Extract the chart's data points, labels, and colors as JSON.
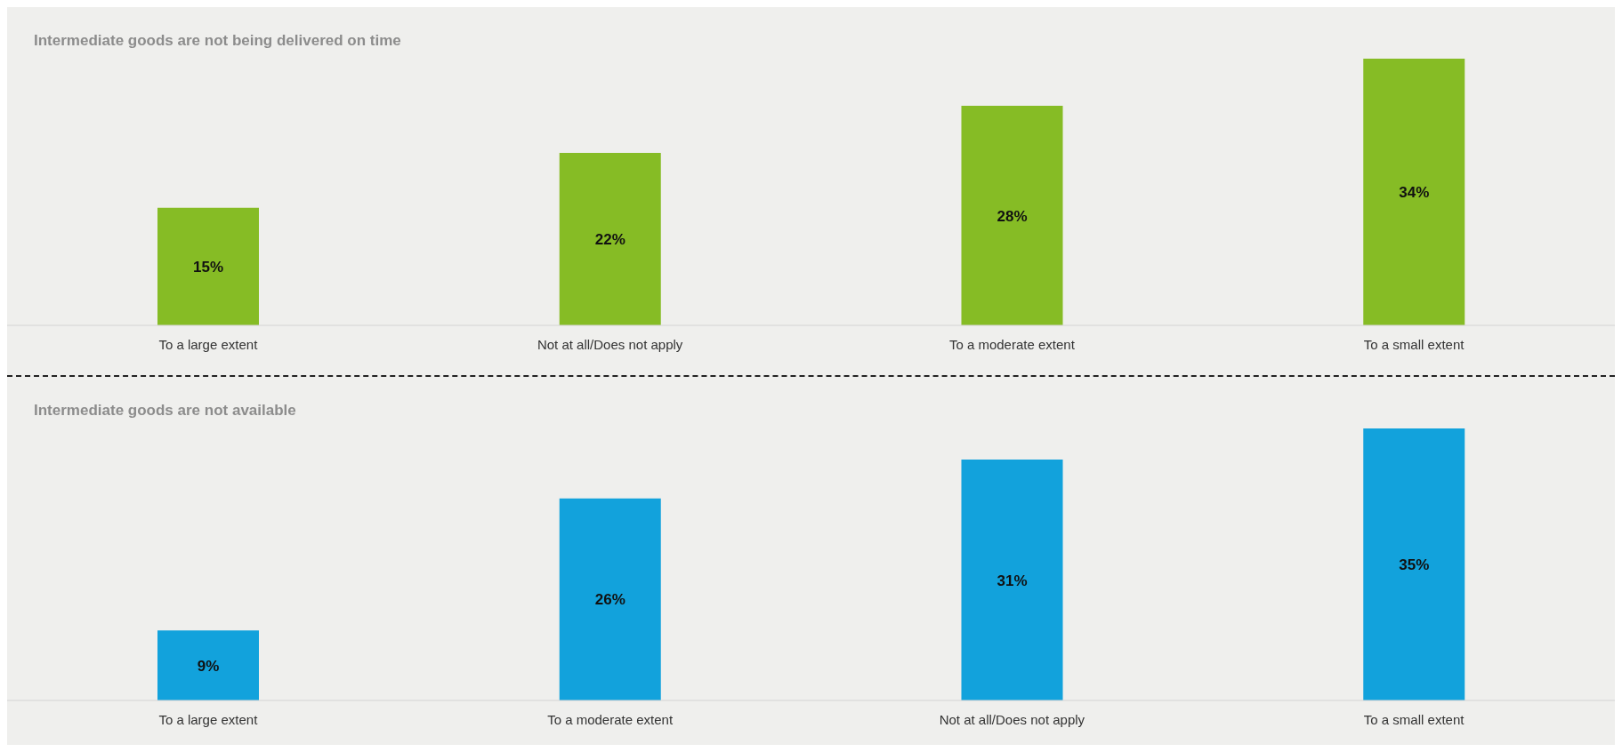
{
  "chart_data": [
    {
      "type": "bar",
      "title": "Intermediate goods are not being delivered on time",
      "categories": [
        "To a large extent",
        "Not at all/Does not apply",
        "To a moderate extent",
        "To a small extent"
      ],
      "values": [
        15,
        22,
        28,
        34
      ],
      "value_labels": [
        "15%",
        "22%",
        "28%",
        "34%"
      ],
      "color": "#86bc25"
    },
    {
      "type": "bar",
      "title": "Intermediate goods are not available",
      "categories": [
        "To a large extent",
        "To a moderate extent",
        "Not at all/Does not apply",
        "To a small extent"
      ],
      "values": [
        9,
        26,
        31,
        35
      ],
      "value_labels": [
        "9%",
        "26%",
        "31%",
        "35%"
      ],
      "color": "#12a2dc"
    }
  ]
}
